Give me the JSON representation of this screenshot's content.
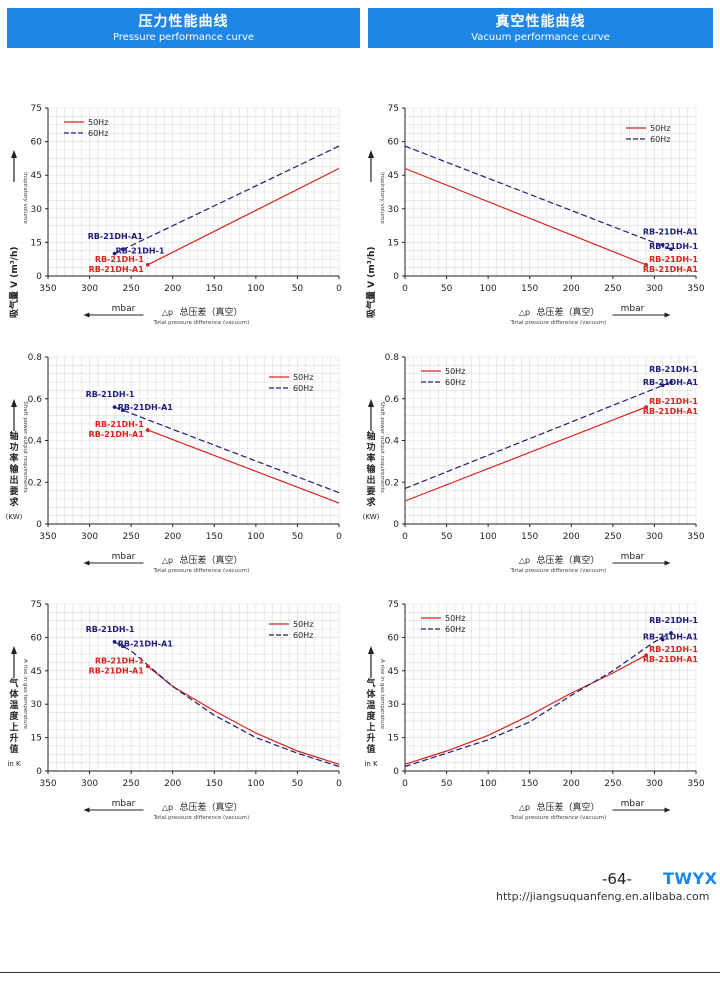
{
  "header": {
    "left_zh": "压力性能曲线",
    "left_en": "Pressure performance curve",
    "right_zh": "真空性能曲线",
    "right_en": "Vacuum performance curve"
  },
  "footer": {
    "page": "-64-",
    "brand": "TWYX",
    "url": "http://jiangsuquanfeng.en.alibaba.com"
  },
  "colors": {
    "hz50": "#d9231c",
    "hz60": "#1c1c7c",
    "banner": "#1e86e6"
  },
  "chart_data": [
    {
      "type": "line",
      "grid": true,
      "legend": "top-left",
      "ylabel_zh": "吸气量 V (m³/h)",
      "ylabel_en": "Inspiratory volume",
      "xlabel_zh": "总压差（真空）",
      "xlabel_en": "Total pressure difference (vacuum)",
      "xdir": "mbar",
      "reversed": true,
      "dp": "△p",
      "xlim": [
        0,
        350
      ],
      "ylim": [
        0,
        75
      ],
      "xticks": [
        350,
        300,
        250,
        200,
        150,
        100,
        50,
        0
      ],
      "yticks": [
        0,
        15,
        30,
        45,
        60,
        75
      ],
      "series": [
        {
          "name": "50Hz",
          "x": [
            0,
            230
          ],
          "y": [
            48,
            5
          ]
        },
        {
          "name": "60Hz",
          "x": [
            0,
            270
          ],
          "y": [
            58,
            10
          ]
        }
      ],
      "annotations": [
        {
          "text": "RB-21DH-A1",
          "series": "60Hz",
          "x": 260,
          "y": 12
        },
        {
          "text": "RB-21DH-1",
          "series": "60Hz",
          "x": 270,
          "y": 10
        },
        {
          "text": "RB-21DH-1",
          "series": "50Hz",
          "x": 230,
          "y": 5
        },
        {
          "text": "RB-21DH-A1",
          "series": "50Hz",
          "x": 230,
          "y": 5
        }
      ]
    },
    {
      "type": "line",
      "grid": true,
      "legend": "top-right",
      "ylabel_zh": "吸气量 V (m³/h)",
      "ylabel_en": "Inspiratory volume",
      "xlabel_zh": "总压差（真空）",
      "xlabel_en": "Total pressure difference (vacuum)",
      "xdir": "mbar",
      "reversed": false,
      "dp": "△p",
      "xlim": [
        0,
        350
      ],
      "ylim": [
        0,
        75
      ],
      "xticks": [
        0,
        50,
        100,
        150,
        200,
        250,
        300,
        350
      ],
      "yticks": [
        0,
        15,
        30,
        45,
        60,
        75
      ],
      "series": [
        {
          "name": "50Hz",
          "x": [
            0,
            290
          ],
          "y": [
            48,
            5
          ]
        },
        {
          "name": "60Hz",
          "x": [
            0,
            320
          ],
          "y": [
            58,
            12
          ]
        }
      ],
      "annotations": [
        {
          "text": "RB-21DH-A1",
          "series": "60Hz",
          "x": 310,
          "y": 14
        },
        {
          "text": "RB-21DH-1",
          "series": "60Hz",
          "x": 320,
          "y": 12
        },
        {
          "text": "RB-21DH-1",
          "series": "50Hz",
          "x": 290,
          "y": 5
        },
        {
          "text": "RB-21DH-A1",
          "series": "50Hz",
          "x": 290,
          "y": 5
        }
      ]
    },
    {
      "type": "line",
      "grid": true,
      "legend": "top-right",
      "ylabel_zh": "轴功率输出要求",
      "ylabel_en": "Shaft power output requirements",
      "yunit": "(KW)",
      "xlabel_zh": "总压差（真空）",
      "xlabel_en": "Total pressure difference (vacuum)",
      "xdir": "mbar",
      "reversed": true,
      "dp": "△p",
      "xlim": [
        0,
        350
      ],
      "ylim": [
        0,
        0.8
      ],
      "xticks": [
        350,
        300,
        250,
        200,
        150,
        100,
        50,
        0
      ],
      "yticks": [
        0,
        0.2,
        0.4,
        0.6,
        0.8
      ],
      "series": [
        {
          "name": "50Hz",
          "x": [
            0,
            230
          ],
          "y": [
            0.1,
            0.45
          ]
        },
        {
          "name": "60Hz",
          "x": [
            0,
            270
          ],
          "y": [
            0.15,
            0.56
          ]
        }
      ],
      "annotations": [
        {
          "text": "RB-21DH-1",
          "series": "60Hz",
          "x": 270,
          "y": 0.56
        },
        {
          "text": "RB-21DH-A1",
          "series": "60Hz",
          "x": 260,
          "y": 0.545
        },
        {
          "text": "RB-21DH-1",
          "series": "50Hz",
          "x": 230,
          "y": 0.45
        },
        {
          "text": "RB-21DH-A1",
          "series": "50Hz",
          "x": 230,
          "y": 0.45
        }
      ]
    },
    {
      "type": "line",
      "grid": true,
      "legend": "top-left",
      "ylabel_zh": "轴功率输出要求",
      "ylabel_en": "Shaft power output requirements",
      "yunit": "(KW)",
      "xlabel_zh": "总压差（真空）",
      "xlabel_en": "Total pressure difference (vacuum)",
      "xdir": "mbar",
      "reversed": false,
      "dp": "△p",
      "xlim": [
        0,
        350
      ],
      "ylim": [
        0,
        0.8
      ],
      "xticks": [
        0,
        50,
        100,
        150,
        200,
        250,
        300,
        350
      ],
      "yticks": [
        0,
        0.2,
        0.4,
        0.6,
        0.8
      ],
      "series": [
        {
          "name": "50Hz",
          "x": [
            0,
            290
          ],
          "y": [
            0.11,
            0.56
          ]
        },
        {
          "name": "60Hz",
          "x": [
            0,
            320
          ],
          "y": [
            0.17,
            0.68
          ]
        }
      ],
      "annotations": [
        {
          "text": "RB-21DH-1",
          "series": "60Hz",
          "x": 320,
          "y": 0.68
        },
        {
          "text": "RB-21DH-A1",
          "series": "60Hz",
          "x": 310,
          "y": 0.665
        },
        {
          "text": "RB-21DH-1",
          "series": "50Hz",
          "x": 290,
          "y": 0.56
        },
        {
          "text": "RB-21DH-A1",
          "series": "50Hz",
          "x": 290,
          "y": 0.56
        }
      ]
    },
    {
      "type": "line",
      "grid": true,
      "legend": "top-right",
      "ylabel_zh": "气体温度上升值",
      "ylabel_en": "A rise in gas temperature",
      "yunit": "in K",
      "xlabel_zh": "总压差（真空）",
      "xlabel_en": "Total pressure difference (vacuum)",
      "xdir": "mbar",
      "reversed": true,
      "dp": "△p",
      "xlim": [
        0,
        350
      ],
      "ylim": [
        0,
        75
      ],
      "xticks": [
        350,
        300,
        250,
        200,
        150,
        100,
        50,
        0
      ],
      "yticks": [
        0,
        15,
        30,
        45,
        60,
        75
      ],
      "series": [
        {
          "name": "50Hz",
          "x": [
            0,
            50,
            100,
            150,
            200,
            230
          ],
          "y": [
            3,
            9,
            17,
            27,
            38,
            47
          ]
        },
        {
          "name": "60Hz",
          "x": [
            0,
            50,
            100,
            150,
            200,
            250,
            270
          ],
          "y": [
            2,
            8,
            15,
            25,
            38,
            54,
            58
          ]
        }
      ],
      "annotations": [
        {
          "text": "RB-21DH-1",
          "series": "60Hz",
          "x": 270,
          "y": 58
        },
        {
          "text": "RB-21DH-A1",
          "series": "60Hz",
          "x": 260,
          "y": 56
        },
        {
          "text": "RB-21DH-1",
          "series": "50Hz",
          "x": 230,
          "y": 47
        },
        {
          "text": "RB-21DH-A1",
          "series": "50Hz",
          "x": 230,
          "y": 47
        }
      ]
    },
    {
      "type": "line",
      "grid": true,
      "legend": "top-left",
      "ylabel_zh": "气体温度上升值",
      "ylabel_en": "A rise in gas temperature",
      "yunit": "in K",
      "xlabel_zh": "总压差（真空）",
      "xlabel_en": "Total pressure difference (vacuum)",
      "xdir": "mbar",
      "reversed": false,
      "dp": "△p",
      "xlim": [
        0,
        350
      ],
      "ylim": [
        0,
        75
      ],
      "xticks": [
        0,
        50,
        100,
        150,
        200,
        250,
        300,
        350
      ],
      "yticks": [
        0,
        15,
        30,
        45,
        60,
        75
      ],
      "series": [
        {
          "name": "50Hz",
          "x": [
            0,
            50,
            100,
            150,
            200,
            250,
            290
          ],
          "y": [
            3,
            9,
            16,
            25,
            35,
            44,
            52
          ]
        },
        {
          "name": "60Hz",
          "x": [
            0,
            50,
            100,
            150,
            200,
            250,
            300,
            320
          ],
          "y": [
            2,
            8,
            14,
            22,
            34,
            45,
            58,
            62
          ]
        }
      ],
      "annotations": [
        {
          "text": "RB-21DH-1",
          "series": "60Hz",
          "x": 320,
          "y": 62
        },
        {
          "text": "RB-21DH-A1",
          "series": "60Hz",
          "x": 310,
          "y": 59
        },
        {
          "text": "RB-21DH-1",
          "series": "50Hz",
          "x": 290,
          "y": 52
        },
        {
          "text": "RB-21DH-A1",
          "series": "50Hz",
          "x": 290,
          "y": 52
        }
      ]
    }
  ]
}
